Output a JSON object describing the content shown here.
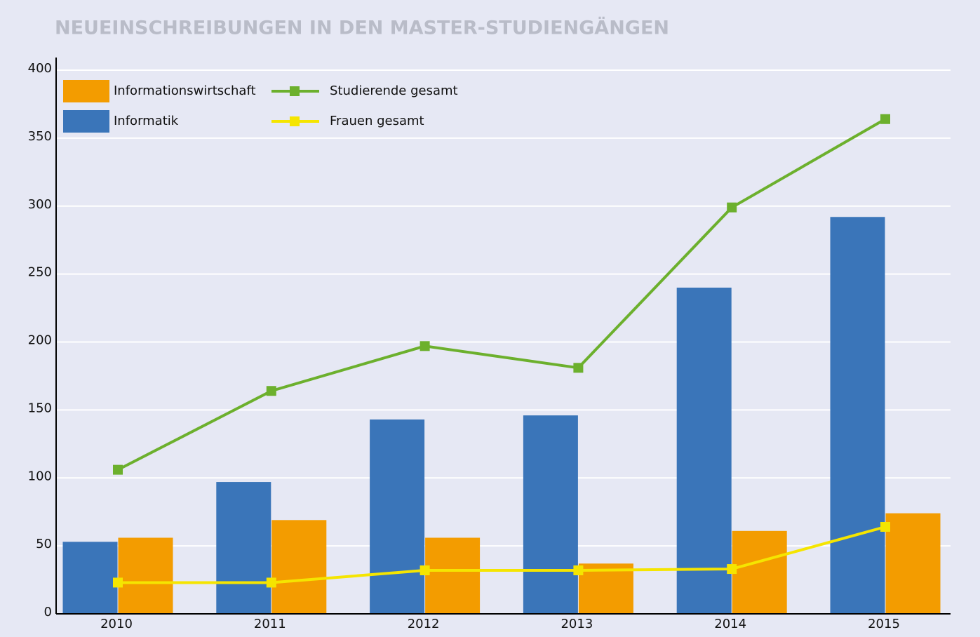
{
  "chart_data": {
    "type": "bar",
    "title": "NEUEINSCHREIBUNGEN IN DEN MASTER-STUDIENGÄNGEN",
    "categories": [
      "2010",
      "2011",
      "2012",
      "2013",
      "2014",
      "2015"
    ],
    "series": [
      {
        "name": "Informationswirtschaft",
        "type": "bar",
        "color": "#f39c00",
        "values": [
          56,
          69,
          56,
          37,
          61,
          74
        ]
      },
      {
        "name": "Informatik",
        "type": "bar",
        "color": "#3a75b9",
        "values": [
          53,
          97,
          143,
          146,
          240,
          292
        ]
      },
      {
        "name": "Studierende gesamt",
        "type": "line",
        "color": "#6cb02d",
        "values": [
          106,
          164,
          197,
          181,
          299,
          364
        ]
      },
      {
        "name": "Frauen gesamt",
        "type": "line",
        "color": "#f5e500",
        "values": [
          23,
          23,
          32,
          32,
          33,
          64
        ]
      }
    ],
    "ylim": [
      0,
      400
    ],
    "yticks": [
      0,
      50,
      100,
      150,
      200,
      250,
      300,
      350,
      400
    ],
    "grid": true
  }
}
